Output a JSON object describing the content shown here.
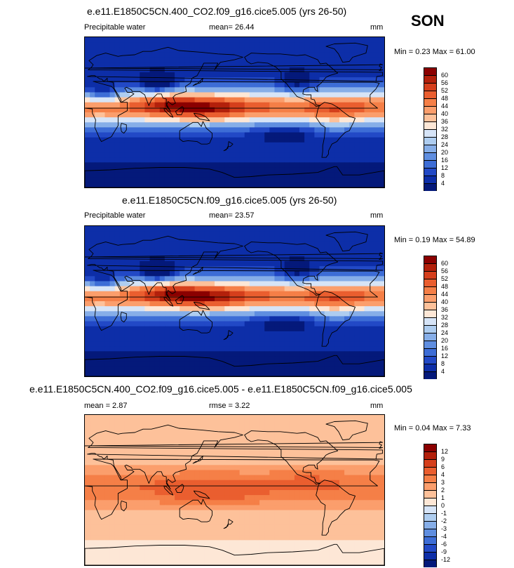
{
  "season": "SON",
  "panels": [
    {
      "title": "e.e11.E1850C5CN.400_CO2.f09_g16.cice5.005 (yrs 26-50)",
      "left_label": "Precipitable water",
      "center_label": "mean=  26.44",
      "units": "mm",
      "minmax": "Min =   0.23 Max =  61.00",
      "levels": [
        "60",
        "56",
        "52",
        "48",
        "44",
        "40",
        "36",
        "32",
        "28",
        "24",
        "20",
        "16",
        "12",
        "8",
        "4"
      ],
      "colors": [
        "#8b0000",
        "#b3200b",
        "#d53f1c",
        "#ea5e2f",
        "#f57f47",
        "#fb9e6c",
        "#fdc19a",
        "#fde7d6",
        "#d6e4f7",
        "#aecdf0",
        "#86aee8",
        "#5f8ee0",
        "#3d6dd6",
        "#2249c6",
        "#0d2ea8",
        "#04197a"
      ],
      "field": "pw",
      "mean": 26.44,
      "min": 0.23,
      "max": 61.0
    },
    {
      "title": "e.e11.E1850C5CN.f09_g16.cice5.005 (yrs 26-50)",
      "left_label": "Precipitable water",
      "center_label": "mean=  23.57",
      "units": "mm",
      "minmax": "Min =   0.19 Max =  54.89",
      "levels": [
        "60",
        "56",
        "52",
        "48",
        "44",
        "40",
        "36",
        "32",
        "28",
        "24",
        "20",
        "16",
        "12",
        "8",
        "4"
      ],
      "colors": [
        "#8b0000",
        "#b3200b",
        "#d53f1c",
        "#ea5e2f",
        "#f57f47",
        "#fb9e6c",
        "#fdc19a",
        "#fde7d6",
        "#d6e4f7",
        "#aecdf0",
        "#86aee8",
        "#5f8ee0",
        "#3d6dd6",
        "#2249c6",
        "#0d2ea8",
        "#04197a"
      ],
      "field": "pw",
      "mean": 23.57,
      "min": 0.19,
      "max": 54.89
    },
    {
      "title": "e.e11.E1850C5CN.400_CO2.f09_g16.cice5.005 - e.e11.E1850C5CN.f09_g16.cice5.005",
      "left_label": "mean =   2.87",
      "center_label": "rmse =   3.22",
      "units": "mm",
      "minmax": "Min =  0.04 Max =   7.33",
      "levels": [
        "12",
        "9",
        "6",
        "4",
        "3",
        "2",
        "1",
        "0",
        "-1",
        "-2",
        "-3",
        "-4",
        "-6",
        "-9",
        "-12"
      ],
      "colors": [
        "#8b0000",
        "#b3200b",
        "#d53f1c",
        "#ea5e2f",
        "#f57f47",
        "#fb9e6c",
        "#fdc19a",
        "#fde7d6",
        "#d6e4f7",
        "#aecdf0",
        "#86aee8",
        "#5f8ee0",
        "#3d6dd6",
        "#2249c6",
        "#0d2ea8",
        "#04197a"
      ],
      "field": "diff",
      "mean": 2.87,
      "rmse": 3.22,
      "min": 0.04,
      "max": 7.33
    }
  ]
}
